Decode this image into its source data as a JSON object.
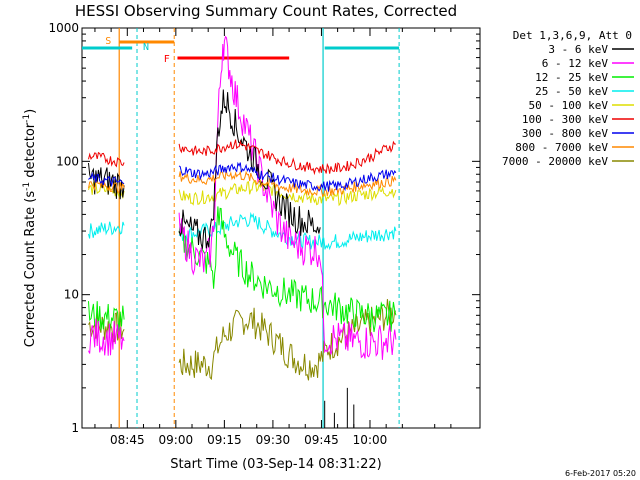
{
  "chart_data": {
    "type": "line",
    "title": "HESSI Observing Summary Count Rates, Corrected",
    "xlabel": "Start Time (03-Sep-14 08:31:22)",
    "ylabel_main": "Corrected Count Rate (s",
    "ylabel_sup1": "-1",
    "ylabel_mid": " detector",
    "ylabel_sup2": "-1",
    "ylabel_end": ")",
    "footer_date": "6-Feb-2017 05:20",
    "y_scale": "log",
    "ylim": [
      1,
      1000
    ],
    "xlim_minutes": [
      -14,
      109
    ],
    "x_ticks": [
      {
        "label": "08:45",
        "min": 0
      },
      {
        "label": "09:00",
        "min": 15
      },
      {
        "label": "09:15",
        "min": 30
      },
      {
        "label": "09:30",
        "min": 45
      },
      {
        "label": "09:45",
        "min": 60
      },
      {
        "label": "10:00",
        "min": 75
      }
    ],
    "y_ticks": [
      {
        "label": "1",
        "value": 1
      },
      {
        "label": "10",
        "value": 10
      },
      {
        "label": "100",
        "value": 100
      },
      {
        "label": "1000",
        "value": 1000
      }
    ],
    "legend_title": "Det 1,3,6,9, Att 0",
    "legend": [
      {
        "name": "3 - 6 keV",
        "color": "#000000"
      },
      {
        "name": "6 - 12 keV",
        "color": "#ff00ff"
      },
      {
        "name": "12 - 25 keV",
        "color": "#00ee00"
      },
      {
        "name": "25 - 50 keV",
        "color": "#00eeee"
      },
      {
        "name": "50 - 100 keV",
        "color": "#dddd00"
      },
      {
        "name": "100 - 300 keV",
        "color": "#ee0000"
      },
      {
        "name": "300 - 800 keV",
        "color": "#0000ee"
      },
      {
        "name": "800 - 7000 keV",
        "color": "#ff8800"
      },
      {
        "name": "7000 - 20000 keV",
        "color": "#888800"
      }
    ],
    "annotations": [
      {
        "label": "S",
        "color": "#ff8800",
        "min": -2.5
      },
      {
        "label": "N",
        "color": "#00cccc",
        "min": 3
      },
      {
        "label": "F",
        "color": "#ff0000",
        "min": 12.5
      }
    ],
    "series": [
      {
        "name": "3 - 6 keV",
        "color": "#000000",
        "x": [
          -12,
          -7,
          -3,
          -1,
          16,
          18,
          20,
          22,
          24,
          26,
          27,
          28,
          29,
          30,
          31,
          32,
          33,
          34,
          36,
          38,
          40,
          42,
          44,
          46,
          48,
          50,
          52,
          54,
          56,
          58,
          59.6
        ],
        "y": [
          75,
          72,
          68,
          66,
          35,
          32,
          30,
          28,
          27,
          30,
          60,
          170,
          230,
          300,
          270,
          230,
          200,
          170,
          140,
          115,
          95,
          80,
          65,
          55,
          48,
          42,
          38,
          36,
          34,
          33,
          32
        ]
      },
      {
        "name": "6 - 12 keV",
        "color": "#ff00ff",
        "x": [
          -12,
          -7,
          -3,
          -1,
          16,
          18,
          20,
          22,
          24,
          26,
          27,
          28,
          29,
          29.5,
          30,
          31,
          32,
          33,
          34,
          36,
          38,
          40,
          42,
          44,
          46,
          48,
          50,
          52,
          54,
          56,
          58,
          59.6,
          61,
          66,
          70,
          75,
          80,
          83
        ],
        "y": [
          5,
          4.8,
          4.6,
          4.5,
          30,
          25,
          20,
          18,
          17,
          22,
          45,
          200,
          500,
          800,
          760,
          600,
          450,
          350,
          280,
          200,
          140,
          100,
          70,
          50,
          38,
          30,
          26,
          24,
          23,
          22,
          22,
          22,
          4.8,
          4.6,
          4.5,
          4.4,
          4.5,
          4.6
        ]
      },
      {
        "name": "12 - 25 keV",
        "color": "#00ee00",
        "x": [
          -12,
          -7,
          -3,
          -1,
          16,
          18,
          20,
          22,
          24,
          26,
          27,
          28,
          29,
          30,
          32,
          34,
          36,
          38,
          40,
          42,
          44,
          46,
          48,
          50,
          52,
          54,
          56,
          58,
          60,
          62,
          65,
          68,
          71,
          74,
          77,
          80,
          83
        ],
        "y": [
          7,
          6.8,
          6.6,
          6.5,
          27,
          24,
          22,
          20,
          18,
          16,
          12,
          45,
          35,
          28,
          22,
          18,
          16,
          14,
          13,
          12,
          11.5,
          11,
          10.5,
          10,
          9.8,
          9.5,
          9.2,
          9,
          8.8,
          8.5,
          8,
          7.5,
          7.2,
          7,
          6.8,
          6.8,
          7
        ]
      },
      {
        "name": "25 - 50 keV",
        "color": "#00eeee",
        "x": [
          -12,
          -8,
          -4,
          -1,
          16,
          20,
          24,
          28,
          32,
          36,
          40,
          44,
          48,
          52,
          56,
          60,
          64,
          68,
          72,
          76,
          80,
          83
        ],
        "y": [
          30,
          31,
          32,
          33,
          28,
          29,
          30,
          31,
          34,
          37,
          35,
          31,
          28,
          26,
          25,
          25,
          25,
          26,
          27,
          28,
          29,
          30
        ]
      },
      {
        "name": "50 - 100 keV",
        "color": "#dddd00",
        "x": [
          -12,
          -7,
          -3,
          -1,
          16,
          20,
          24,
          28,
          32,
          36,
          40,
          44,
          48,
          52,
          56,
          60,
          64,
          68,
          72,
          76,
          80,
          83
        ],
        "y": [
          62,
          61,
          60,
          60,
          55,
          53,
          54,
          56,
          60,
          63,
          64,
          62,
          58,
          55,
          53,
          52,
          52,
          54,
          56,
          58,
          60,
          61
        ]
      },
      {
        "name": "100 - 300 keV",
        "color": "#ee0000",
        "x": [
          -12,
          -7,
          -3,
          -1,
          16,
          20,
          24,
          28,
          32,
          36,
          40,
          44,
          48,
          52,
          56,
          60,
          64,
          68,
          72,
          76,
          80,
          83
        ],
        "y": [
          110,
          105,
          100,
          98,
          130,
          120,
          118,
          125,
          135,
          132,
          120,
          110,
          100,
          95,
          90,
          88,
          88,
          92,
          100,
          110,
          125,
          135
        ]
      },
      {
        "name": "300 - 800 keV",
        "color": "#0000ee",
        "x": [
          -12,
          -7,
          -3,
          -1,
          16,
          20,
          24,
          28,
          32,
          36,
          40,
          44,
          48,
          52,
          56,
          60,
          64,
          68,
          72,
          76,
          80,
          83
        ],
        "y": [
          75,
          72,
          70,
          68,
          88,
          82,
          80,
          85,
          92,
          90,
          82,
          76,
          72,
          68,
          66,
          65,
          65,
          67,
          72,
          76,
          80,
          82
        ]
      },
      {
        "name": "800 - 7000 keV",
        "color": "#ff8800",
        "x": [
          -12,
          -7,
          -3,
          -1,
          16,
          20,
          24,
          28,
          32,
          36,
          40,
          44,
          48,
          52,
          56,
          60,
          64,
          68,
          72,
          76,
          80,
          83
        ],
        "y": [
          68,
          66,
          64,
          63,
          78,
          74,
          72,
          76,
          80,
          78,
          72,
          68,
          64,
          62,
          60,
          60,
          60,
          62,
          66,
          68,
          70,
          72
        ]
      },
      {
        "name": "7000 - 20000 keV",
        "color": "#888800",
        "x": [
          -12,
          -7,
          -3,
          -1,
          16,
          20,
          24,
          26,
          28,
          30,
          32,
          34,
          36,
          38,
          40,
          42,
          44,
          46,
          48,
          50,
          52,
          54,
          56,
          58,
          60,
          62,
          65,
          68,
          71,
          74,
          77,
          80,
          83
        ],
        "y": [
          6,
          5.8,
          5.6,
          5.5,
          3,
          3,
          3,
          3,
          4,
          5,
          5.5,
          6,
          6.5,
          6.5,
          6,
          5.5,
          5,
          4.5,
          4,
          3.6,
          3.3,
          3.1,
          3,
          3,
          3.3,
          4,
          4.5,
          5,
          5.5,
          6,
          6.5,
          7,
          7.5
        ]
      }
    ]
  }
}
